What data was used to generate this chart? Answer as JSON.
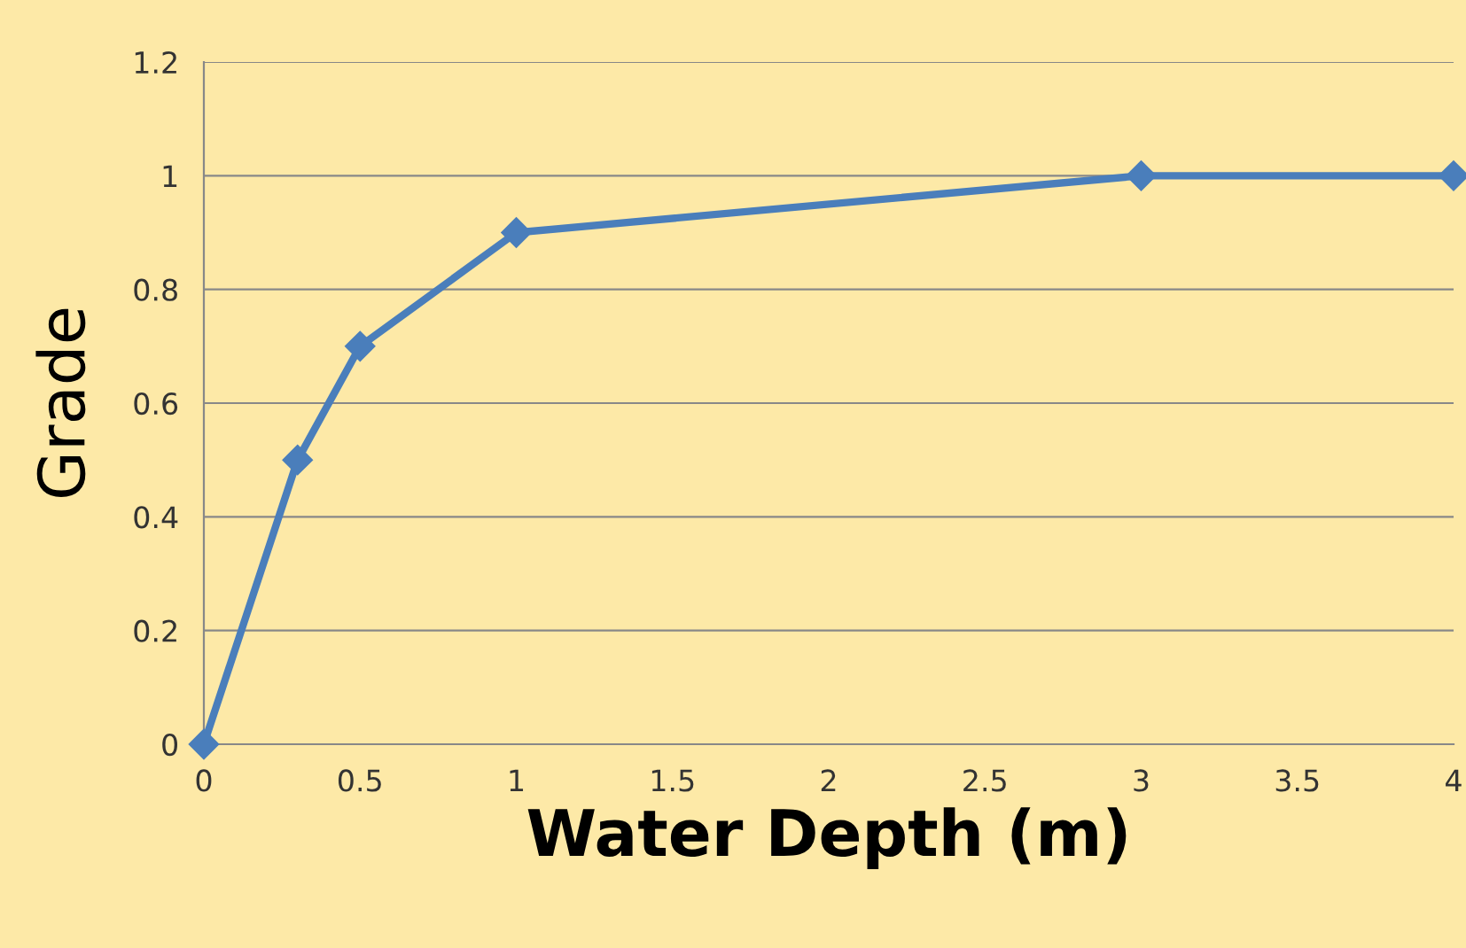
{
  "chart_data": {
    "type": "line",
    "xlabel": "Water Depth (m)",
    "ylabel": "Grade",
    "series": [
      {
        "color": "#4a7ebb",
        "x": [
          0,
          0.3,
          0.5,
          1,
          3,
          4
        ],
        "values": [
          0,
          0.5,
          0.7,
          0.9,
          1,
          1
        ]
      }
    ],
    "xlim": [
      0,
      4
    ],
    "xticks": [
      0,
      0.5,
      1,
      1.5,
      2,
      2.5,
      3,
      3.5,
      4
    ],
    "ylim": [
      0,
      1.2
    ],
    "yticks": [
      0,
      0.2,
      0.4,
      0.6,
      0.8,
      1,
      1.2
    ],
    "grid": "y",
    "marker": "diamond",
    "line_style": "solid",
    "legend": false
  }
}
